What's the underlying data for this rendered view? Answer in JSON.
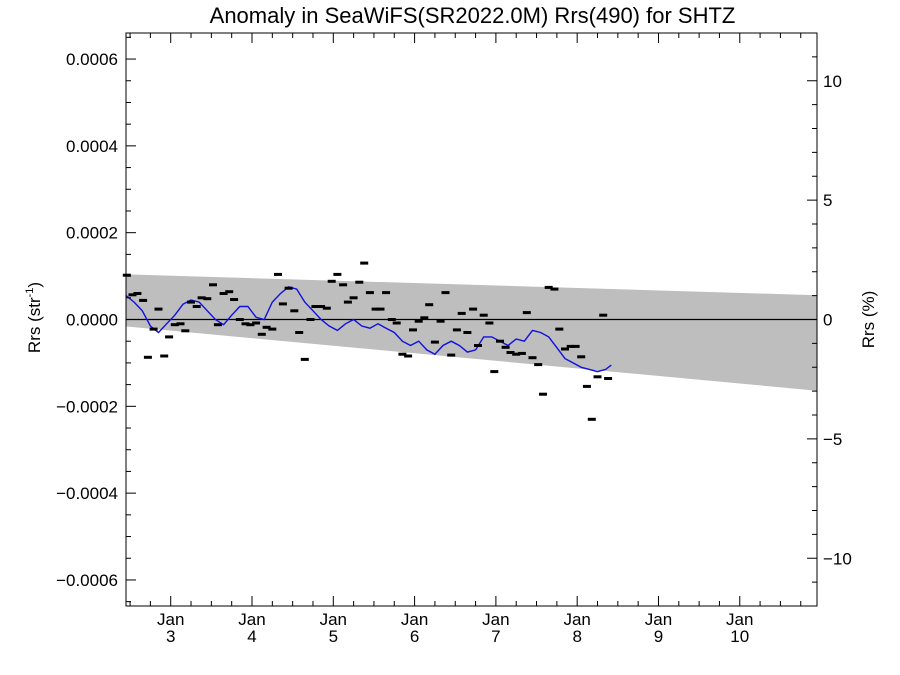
{
  "chart_data": {
    "type": "scatter",
    "title": "Anomaly in SeaWiFS(SR2022.0M) Rrs(490) for SHTZ",
    "ylabel": "Rrs (str",
    "ylabel_sup": "-1",
    "ylabel_end": ")",
    "y2label": "Rrs (%)",
    "xlim": [
      2.45,
      10.95
    ],
    "ylim": [
      -0.00066,
      0.00066
    ],
    "y2lim": [
      -12,
      12
    ],
    "x_major_ticks": [
      3,
      4,
      5,
      6,
      7,
      8,
      9,
      10
    ],
    "x_tick_labels": [
      {
        "x": 3,
        "top": "Jan",
        "bottom": "3"
      },
      {
        "x": 4,
        "top": "Jan",
        "bottom": "4"
      },
      {
        "x": 5,
        "top": "Jan",
        "bottom": "5"
      },
      {
        "x": 6,
        "top": "Jan",
        "bottom": "6"
      },
      {
        "x": 7,
        "top": "Jan",
        "bottom": "7"
      },
      {
        "x": 8,
        "top": "Jan",
        "bottom": "8"
      },
      {
        "x": 9,
        "top": "Jan",
        "bottom": "9"
      },
      {
        "x": 10,
        "top": "Jan",
        "bottom": "10"
      }
    ],
    "y_ticks": [
      {
        "v": 0.0006,
        "label": "0.0006"
      },
      {
        "v": 0.0004,
        "label": "0.0004"
      },
      {
        "v": 0.0002,
        "label": "0.0002"
      },
      {
        "v": 0.0,
        "label": "0.0000"
      },
      {
        "v": -0.0002,
        "label": "−0.0002"
      },
      {
        "v": -0.0004,
        "label": "−0.0004"
      },
      {
        "v": -0.0006,
        "label": "−0.0006"
      }
    ],
    "y2_ticks": [
      {
        "v": 10,
        "label": "10"
      },
      {
        "v": 5,
        "label": "5"
      },
      {
        "v": 0,
        "label": "0"
      },
      {
        "v": -5,
        "label": "−5"
      },
      {
        "v": -10,
        "label": "−10"
      }
    ],
    "band": {
      "x": [
        2.45,
        10.95
      ],
      "upper": [
        0.000104,
        5.6e-05
      ],
      "lower": [
        -1.6e-05,
        -0.000164
      ],
      "color": "#bebebe"
    },
    "zero_line": true,
    "points": [
      {
        "x": 2.46,
        "y": 0.000102
      },
      {
        "x": 2.53,
        "y": 5.7e-05
      },
      {
        "x": 2.59,
        "y": 6e-05
      },
      {
        "x": 2.66,
        "y": 4.4e-05
      },
      {
        "x": 2.72,
        "y": -8.7e-05
      },
      {
        "x": 2.79,
        "y": -2.2e-05
      },
      {
        "x": 2.85,
        "y": 2.4e-05
      },
      {
        "x": 2.92,
        "y": -8.4e-05
      },
      {
        "x": 2.98,
        "y": -4e-05
      },
      {
        "x": 3.05,
        "y": -1.2e-05
      },
      {
        "x": 3.12,
        "y": -1e-05
      },
      {
        "x": 3.18,
        "y": -2.6e-05
      },
      {
        "x": 3.25,
        "y": 4e-05
      },
      {
        "x": 3.32,
        "y": 3e-05
      },
      {
        "x": 3.38,
        "y": 5e-05
      },
      {
        "x": 3.45,
        "y": 4.8e-05
      },
      {
        "x": 3.52,
        "y": 8e-05
      },
      {
        "x": 3.58,
        "y": -1.2e-05
      },
      {
        "x": 3.65,
        "y": 6e-05
      },
      {
        "x": 3.72,
        "y": 6.4e-05
      },
      {
        "x": 3.78,
        "y": 4.6e-05
      },
      {
        "x": 3.85,
        "y": 0.0
      },
      {
        "x": 3.92,
        "y": -1e-05
      },
      {
        "x": 3.98,
        "y": -1.2e-05
      },
      {
        "x": 4.05,
        "y": -8e-06
      },
      {
        "x": 4.12,
        "y": -3.4e-05
      },
      {
        "x": 4.18,
        "y": -1.8e-05
      },
      {
        "x": 4.25,
        "y": -2.2e-05
      },
      {
        "x": 4.32,
        "y": 0.000104
      },
      {
        "x": 4.38,
        "y": 3.6e-05
      },
      {
        "x": 4.45,
        "y": 7.2e-05
      },
      {
        "x": 4.52,
        "y": 2e-05
      },
      {
        "x": 4.58,
        "y": -3e-05
      },
      {
        "x": 4.65,
        "y": -9.2e-05
      },
      {
        "x": 4.72,
        "y": 0.0
      },
      {
        "x": 4.78,
        "y": 3e-05
      },
      {
        "x": 4.85,
        "y": 3e-05
      },
      {
        "x": 4.92,
        "y": 2.6e-05
      },
      {
        "x": 4.98,
        "y": 8.8e-05
      },
      {
        "x": 5.05,
        "y": 0.000104
      },
      {
        "x": 5.12,
        "y": 8e-05
      },
      {
        "x": 5.18,
        "y": 4e-05
      },
      {
        "x": 5.25,
        "y": 5e-05
      },
      {
        "x": 5.32,
        "y": 8.6e-05
      },
      {
        "x": 5.38,
        "y": 0.00013
      },
      {
        "x": 5.45,
        "y": 6.2e-05
      },
      {
        "x": 5.52,
        "y": 2.4e-05
      },
      {
        "x": 5.58,
        "y": 2.4e-05
      },
      {
        "x": 5.65,
        "y": 6.2e-05
      },
      {
        "x": 5.72,
        "y": 0.0
      },
      {
        "x": 5.78,
        "y": -8e-06
      },
      {
        "x": 5.85,
        "y": -8e-05
      },
      {
        "x": 5.92,
        "y": -8.4e-05
      },
      {
        "x": 5.98,
        "y": -2.4e-05
      },
      {
        "x": 6.05,
        "y": -4e-06
      },
      {
        "x": 6.12,
        "y": 4e-06
      },
      {
        "x": 6.18,
        "y": 3.4e-05
      },
      {
        "x": 6.25,
        "y": -5.2e-05
      },
      {
        "x": 6.32,
        "y": -4e-06
      },
      {
        "x": 6.38,
        "y": 6.2e-05
      },
      {
        "x": 6.45,
        "y": -8.2e-05
      },
      {
        "x": 6.52,
        "y": -2.4e-05
      },
      {
        "x": 6.58,
        "y": 1.4e-05
      },
      {
        "x": 6.65,
        "y": -3e-05
      },
      {
        "x": 6.72,
        "y": 2.4e-05
      },
      {
        "x": 6.78,
        "y": -6e-05
      },
      {
        "x": 6.85,
        "y": 1e-05
      },
      {
        "x": 6.92,
        "y": -8e-06
      },
      {
        "x": 6.98,
        "y": -0.00012
      },
      {
        "x": 7.05,
        "y": -5e-05
      },
      {
        "x": 7.12,
        "y": -6.4e-05
      },
      {
        "x": 7.18,
        "y": -7.6e-05
      },
      {
        "x": 7.25,
        "y": -8e-05
      },
      {
        "x": 7.32,
        "y": -7.8e-05
      },
      {
        "x": 7.38,
        "y": 1.6e-05
      },
      {
        "x": 7.45,
        "y": -8.8e-05
      },
      {
        "x": 7.52,
        "y": -0.000104
      },
      {
        "x": 7.58,
        "y": -0.000172
      },
      {
        "x": 7.65,
        "y": 7.4e-05
      },
      {
        "x": 7.72,
        "y": 7e-05
      },
      {
        "x": 7.78,
        "y": -2.2e-05
      },
      {
        "x": 7.85,
        "y": -6.8e-05
      },
      {
        "x": 7.92,
        "y": -6.2e-05
      },
      {
        "x": 7.98,
        "y": -6.2e-05
      },
      {
        "x": 8.05,
        "y": -8.6e-05
      },
      {
        "x": 8.12,
        "y": -0.000154
      },
      {
        "x": 8.18,
        "y": -0.00023
      },
      {
        "x": 8.25,
        "y": -0.000132
      },
      {
        "x": 8.32,
        "y": 1e-05
      },
      {
        "x": 8.38,
        "y": -0.000136
      }
    ],
    "running_mean": {
      "color": "#1010e0",
      "x": [
        2.45,
        2.55,
        2.65,
        2.75,
        2.85,
        2.95,
        3.05,
        3.15,
        3.25,
        3.35,
        3.45,
        3.55,
        3.65,
        3.75,
        3.85,
        3.95,
        4.05,
        4.15,
        4.25,
        4.35,
        4.45,
        4.55,
        4.65,
        4.75,
        4.85,
        4.95,
        5.05,
        5.15,
        5.25,
        5.35,
        5.45,
        5.55,
        5.65,
        5.75,
        5.85,
        5.95,
        6.05,
        6.15,
        6.25,
        6.35,
        6.45,
        6.55,
        6.65,
        6.75,
        6.85,
        6.95,
        7.05,
        7.15,
        7.25,
        7.35,
        7.45,
        7.55,
        7.65,
        7.75,
        7.85,
        7.95,
        8.05,
        8.15,
        8.25,
        8.35,
        8.42
      ],
      "y": [
        5.5e-05,
        4e-05,
        2e-05,
        -1.5e-05,
        -3e-05,
        -1e-05,
        1e-05,
        3.5e-05,
        4.5e-05,
        4e-05,
        2e-05,
        0.0,
        -1.2e-05,
        1e-05,
        3e-05,
        3e-05,
        5e-06,
        0.0,
        4e-05,
        6e-05,
        7.5e-05,
        7e-05,
        4e-05,
        2e-05,
        0.0,
        -1.5e-05,
        -2.5e-05,
        -1e-05,
        0.0,
        -1.5e-05,
        -2e-05,
        -1e-05,
        -2e-05,
        -3e-05,
        -5e-05,
        -6e-05,
        -5e-05,
        -7e-05,
        -8e-05,
        -6e-05,
        -5e-05,
        -6e-05,
        -7.5e-05,
        -7e-05,
        -4e-05,
        -4e-05,
        -5e-05,
        -6e-05,
        -4.5e-05,
        -5e-05,
        -2.5e-05,
        -3e-05,
        -4e-05,
        -6.5e-05,
        -9e-05,
        -0.0001,
        -0.00011,
        -0.000115,
        -0.00012,
        -0.000115,
        -0.000105
      ]
    }
  }
}
